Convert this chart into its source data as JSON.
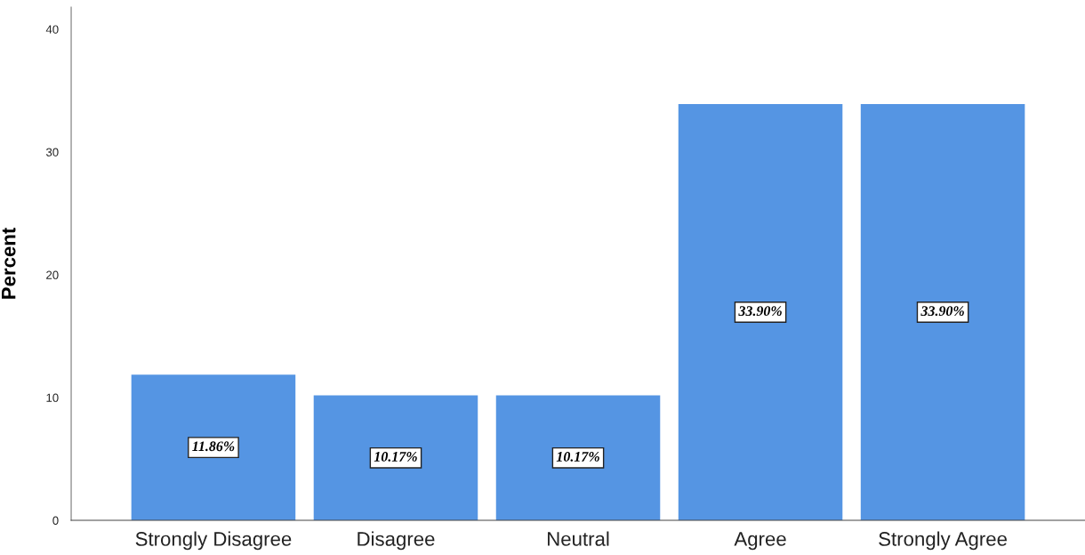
{
  "chart_data": {
    "type": "bar",
    "categories": [
      "Strongly Disagree",
      "Disagree",
      "Neutral",
      "Agree",
      "Strongly Agree"
    ],
    "values": [
      11.86,
      10.17,
      10.17,
      33.9,
      33.9
    ],
    "value_labels": [
      "11.86%",
      "10.17%",
      "10.17%",
      "33.90%",
      "33.90%"
    ],
    "color": "#5595e3",
    "ylabel": "Percent",
    "ylim": [
      0,
      41.8
    ],
    "yticks": [
      0,
      10,
      20,
      30,
      40
    ],
    "grid": false,
    "legend": false
  }
}
